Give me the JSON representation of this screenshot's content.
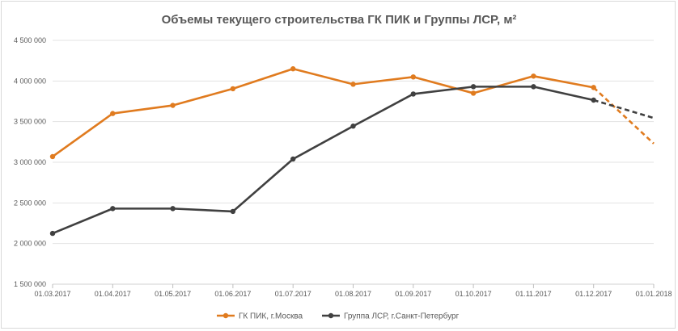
{
  "chart_data": {
    "type": "line",
    "title": "Объемы текущего строительства ГК ПИК и Группы ЛСР, м²",
    "xlabel": "",
    "ylabel": "",
    "categories": [
      "01.03.2017",
      "01.04.2017",
      "01.05.2017",
      "01.06.2017",
      "01.07.2017",
      "01.08.2017",
      "01.09.2017",
      "01.10.2017",
      "01.11.2017",
      "01.12.2017",
      "01.01.2018"
    ],
    "ylim": [
      1500000,
      4500000
    ],
    "yticks": [
      {
        "value": 1500000,
        "label": "1 500 000"
      },
      {
        "value": 2000000,
        "label": "2 000 000"
      },
      {
        "value": 2500000,
        "label": "2 500 000"
      },
      {
        "value": 3000000,
        "label": "3 000 000"
      },
      {
        "value": 3500000,
        "label": "3 500 000"
      },
      {
        "value": 4000000,
        "label": "4 000 000"
      },
      {
        "value": 4500000,
        "label": "4 500 000"
      }
    ],
    "grid": true,
    "legend": "bottom",
    "series": [
      {
        "name": "ГК ПИК, г.Москва",
        "color": "#e07b1f",
        "values": [
          3070000,
          3600000,
          3700000,
          3905000,
          4150000,
          3960000,
          4050000,
          3850000,
          4060000,
          3920000,
          3230000
        ],
        "dashed_from_index": 9
      },
      {
        "name": "Группа ЛСР, г.Санкт-Петербург",
        "color": "#404040",
        "values": [
          2125000,
          2430000,
          2430000,
          2395000,
          3040000,
          3445000,
          3840000,
          3930000,
          3930000,
          3765000,
          3545000
        ],
        "dashed_from_index": 9
      }
    ]
  }
}
